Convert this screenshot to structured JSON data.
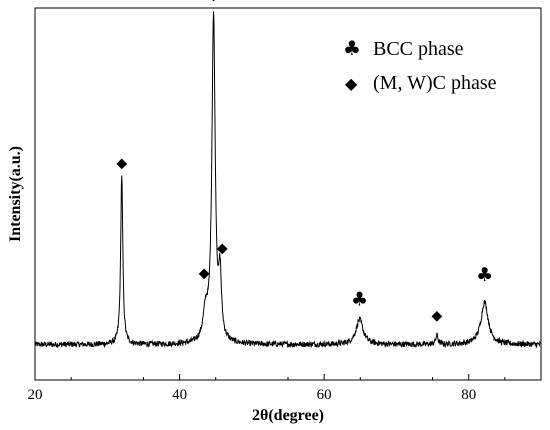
{
  "chart_data": {
    "type": "line",
    "title": "",
    "xlabel": "2θ(degree)",
    "ylabel": "Intensity(a.u.)",
    "xlim": [
      20,
      90
    ],
    "ylim": [
      0,
      1.05
    ],
    "x_ticks": [
      20,
      40,
      60,
      80
    ],
    "y_ticks_shown": false,
    "grid": false,
    "legend_position": "top-right",
    "colors": {
      "line": "#000000",
      "frame": "#000000",
      "background": "#ffffff"
    },
    "legend": [
      {
        "symbol": "club",
        "glyph": "♣",
        "label": "BCC phase"
      },
      {
        "symbol": "diamond",
        "glyph": "◆",
        "label": "(M, W)C phase"
      }
    ],
    "series": [
      {
        "baseline": 0.1,
        "noise_amplitude": 0.008,
        "peaks": [
          {
            "x": 32.0,
            "height": 0.48,
            "fwhm": 0.35
          },
          {
            "x": 43.6,
            "height": 0.08,
            "fwhm": 0.8
          },
          {
            "x": 44.7,
            "height": 0.92,
            "fwhm": 0.55
          },
          {
            "x": 45.6,
            "height": 0.17,
            "fwhm": 0.45
          },
          {
            "x": 64.9,
            "height": 0.07,
            "fwhm": 1.2
          },
          {
            "x": 75.6,
            "height": 0.025,
            "fwhm": 0.4
          },
          {
            "x": 82.2,
            "height": 0.12,
            "fwhm": 1.2
          }
        ]
      }
    ],
    "peak_markers": [
      {
        "x": 32.0,
        "y": 0.6,
        "symbol": "diamond",
        "glyph": "◆"
      },
      {
        "x": 43.4,
        "y": 0.29,
        "symbol": "diamond",
        "glyph": "◆"
      },
      {
        "x": 44.7,
        "y": 1.07,
        "symbol": "club",
        "glyph": "♣"
      },
      {
        "x": 45.9,
        "y": 0.36,
        "symbol": "diamond",
        "glyph": "◆"
      },
      {
        "x": 64.9,
        "y": 0.21,
        "symbol": "club",
        "glyph": "♣"
      },
      {
        "x": 75.6,
        "y": 0.17,
        "symbol": "diamond",
        "glyph": "◆"
      },
      {
        "x": 82.2,
        "y": 0.28,
        "symbol": "club",
        "glyph": "♣"
      }
    ]
  }
}
